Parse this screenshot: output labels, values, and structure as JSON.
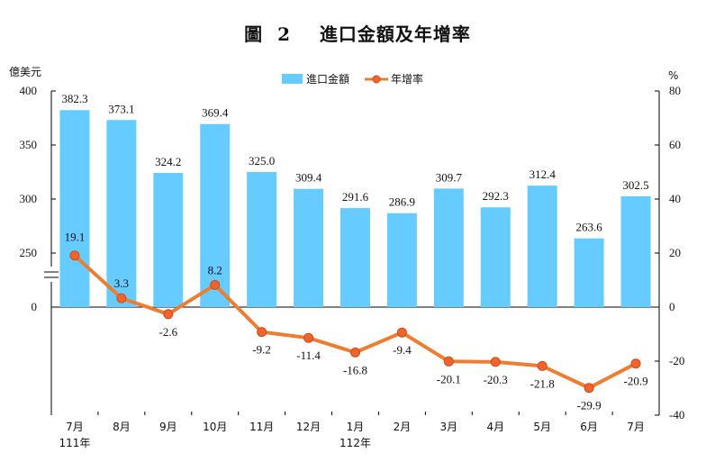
{
  "chart_data": {
    "type": "bar+line",
    "title": "圖  2    進口金額及年增率",
    "left_unit": "億美元",
    "right_unit": "%",
    "categories": [
      "7月",
      "8月",
      "9月",
      "10月",
      "11月",
      "12月",
      "1月",
      "2月",
      "3月",
      "4月",
      "5月",
      "6月",
      "7月"
    ],
    "year_labels": [
      "111年",
      "",
      "",
      "",
      "",
      "",
      "112年",
      "",
      "",
      "",
      "",
      "",
      ""
    ],
    "series": [
      {
        "name": "進口金額",
        "type": "bar",
        "axis": "left",
        "color": "#66ccff",
        "values": [
          382.3,
          373.1,
          324.2,
          369.4,
          325.0,
          309.4,
          291.6,
          286.9,
          309.7,
          292.3,
          312.4,
          263.6,
          302.5
        ],
        "labels": [
          "382.3",
          "373.1",
          "324.2",
          "369.4",
          "325.0",
          "309.4",
          "291.6",
          "286.9",
          "309.7",
          "292.3",
          "312.4",
          "263.6",
          "302.5"
        ]
      },
      {
        "name": "年增率",
        "type": "line",
        "axis": "right",
        "color": "#ed7d31",
        "values": [
          19.1,
          3.3,
          -2.6,
          8.2,
          -9.2,
          -11.4,
          -16.8,
          -9.4,
          -20.1,
          -20.3,
          -21.8,
          -29.9,
          -20.9
        ],
        "labels": [
          "19.1",
          "3.3",
          "-2.6",
          "8.2",
          "-9.2",
          "-11.4",
          "-16.8",
          "-9.4",
          "-20.1",
          "-20.3",
          "-21.8",
          "-29.9",
          "-20.9"
        ]
      }
    ],
    "left_axis": {
      "ticks": [
        "400",
        "350",
        "300",
        "250",
        "0"
      ],
      "broken": true
    },
    "right_axis": {
      "ticks": [
        "80",
        "60",
        "40",
        "20",
        "0",
        "-20",
        "-40"
      ],
      "range": [
        -40,
        80
      ]
    },
    "legend_position": "top-center",
    "grid": false
  }
}
